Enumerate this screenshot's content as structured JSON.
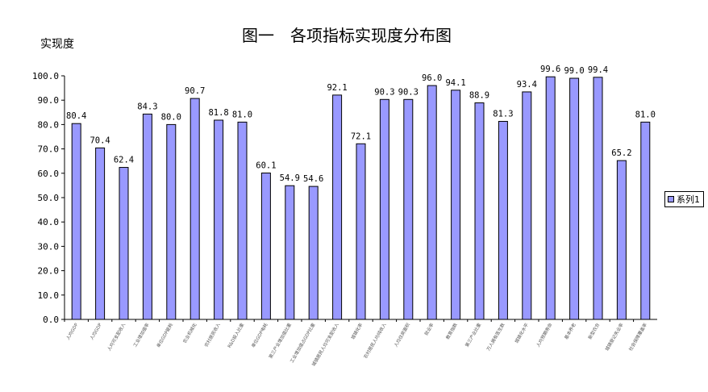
{
  "chart_data": {
    "type": "bar",
    "title": "图一　各项指标实现度分布图",
    "ylabel": "实现度",
    "ylim": [
      0,
      100
    ],
    "yticks": [
      "0.0",
      "10.0",
      "20.0",
      "30.0",
      "40.0",
      "50.0",
      "60.0",
      "70.0",
      "80.0",
      "90.0",
      "100.0"
    ],
    "categories": [
      "人均GDP",
      "人均GDP",
      "人均可支配收入",
      "工业增加值率",
      "单位GDP能耗",
      "农业机械化",
      "农村居民收入",
      "R&D投入比重",
      "单位GDP电耗",
      "第三产业增加值比重",
      "工业增加值占GDP比重",
      "城镇居民人均可支配收入",
      "城镇化率",
      "农村居民人均纯收入",
      "人均住房面积",
      "就业率",
      "教育指数",
      "第三产业比重",
      "万人拥有医生数",
      "城镇化水平",
      "人均预期寿命",
      "基本养老",
      "新型农合",
      "城镇登记失业率",
      "社会保障覆盖率"
    ],
    "series": [
      {
        "name": "系列1",
        "values": [
          80.4,
          70.4,
          62.4,
          84.3,
          80.0,
          90.7,
          81.8,
          81.0,
          60.1,
          54.9,
          54.6,
          92.1,
          72.1,
          90.3,
          90.3,
          96.0,
          94.1,
          88.9,
          81.3,
          93.4,
          99.6,
          99.0,
          99.4,
          65.2,
          81.0
        ],
        "labels": [
          "80.4",
          "70.4",
          "62.4",
          "84.3",
          "80.0",
          "90.7",
          "81.8",
          "81.0",
          "60.1",
          "54.9",
          "54.6",
          "92.1",
          "72.1",
          "90.3",
          "90.3",
          "96.0",
          "94.1",
          "88.9",
          "81.3",
          "93.4",
          "99.6",
          "99.0",
          "99.4",
          "65.2",
          "81.0"
        ]
      }
    ],
    "colors": {
      "bar_fill": "#9999ff",
      "bar_stroke": "#000000",
      "axis": "#000000"
    },
    "grid": false,
    "legend_position": "right"
  }
}
